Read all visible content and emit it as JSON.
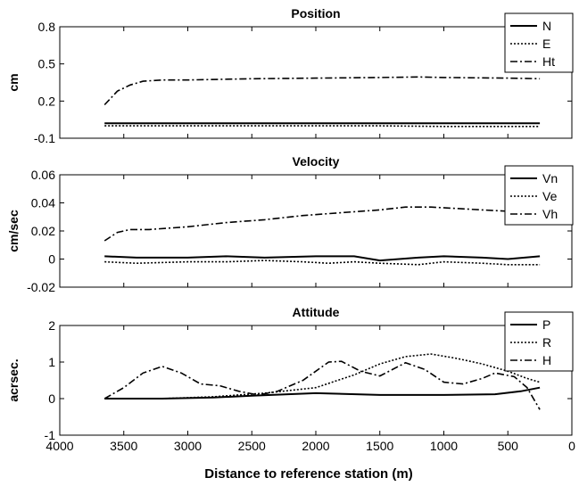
{
  "chart_data": [
    {
      "type": "line",
      "title": "Position",
      "ylabel": "cm",
      "xlim": [
        4000,
        0
      ],
      "ylim": [
        -0.1,
        0.8
      ],
      "yticks": [
        "0.8",
        "0.5",
        "0.2",
        "-0.1"
      ],
      "grid": false,
      "legend": "top-right",
      "series": [
        {
          "name": "N",
          "style": "solid",
          "x": [
            3650,
            3000,
            2000,
            1000,
            250
          ],
          "y": [
            0.02,
            0.02,
            0.02,
            0.02,
            0.02
          ]
        },
        {
          "name": "E",
          "style": "dotted",
          "x": [
            3650,
            3000,
            2000,
            1500,
            1000,
            250
          ],
          "y": [
            0.0,
            0.0,
            0.0,
            0.0,
            -0.005,
            -0.005
          ]
        },
        {
          "name": "Ht",
          "style": "dashdot",
          "x": [
            3650,
            3550,
            3450,
            3350,
            3200,
            3000,
            2500,
            2000,
            1500,
            1200,
            1000,
            500,
            250
          ],
          "y": [
            0.17,
            0.28,
            0.33,
            0.36,
            0.37,
            0.37,
            0.38,
            0.385,
            0.39,
            0.395,
            0.39,
            0.385,
            0.38
          ]
        }
      ]
    },
    {
      "type": "line",
      "title": "Velocity",
      "ylabel": "cm/sec",
      "xlim": [
        4000,
        0
      ],
      "ylim": [
        -0.02,
        0.06
      ],
      "yticks": [
        "0.06",
        "0.04",
        "0.02",
        "0",
        "-0.02"
      ],
      "grid": false,
      "legend": "top-right",
      "series": [
        {
          "name": "Vn",
          "style": "solid",
          "x": [
            3650,
            3400,
            3000,
            2700,
            2400,
            2000,
            1700,
            1500,
            1200,
            1000,
            700,
            500,
            250
          ],
          "y": [
            0.002,
            0.001,
            0.001,
            0.002,
            0.001,
            0.002,
            0.002,
            -0.001,
            0.001,
            0.002,
            0.001,
            0.0,
            0.002
          ]
        },
        {
          "name": "Ve",
          "style": "dotted",
          "x": [
            3650,
            3400,
            3000,
            2700,
            2400,
            2100,
            1900,
            1700,
            1500,
            1200,
            1000,
            700,
            500,
            250
          ],
          "y": [
            -0.002,
            -0.003,
            -0.002,
            -0.002,
            -0.001,
            -0.002,
            -0.003,
            -0.002,
            -0.003,
            -0.004,
            -0.002,
            -0.003,
            -0.004,
            -0.004
          ]
        },
        {
          "name": "Vh",
          "style": "dashdot",
          "x": [
            3650,
            3550,
            3450,
            3300,
            3000,
            2700,
            2400,
            2100,
            1800,
            1500,
            1300,
            1100,
            900,
            700,
            500,
            350
          ],
          "y": [
            0.013,
            0.019,
            0.021,
            0.021,
            0.023,
            0.026,
            0.028,
            0.031,
            0.033,
            0.035,
            0.037,
            0.037,
            0.036,
            0.035,
            0.034,
            0.031
          ]
        }
      ]
    },
    {
      "type": "line",
      "title": "Attitude",
      "ylabel": "acrsec.",
      "xlabel": "Distance to reference station (m)",
      "xlim": [
        4000,
        0
      ],
      "ylim": [
        -1,
        2
      ],
      "yticks": [
        "2",
        "1",
        "0",
        "-1"
      ],
      "xticks": [
        "4000",
        "3500",
        "3000",
        "2500",
        "2000",
        "1500",
        "1000",
        "500",
        "0"
      ],
      "xtick_values": [
        4000,
        3500,
        3000,
        2500,
        2000,
        1500,
        1000,
        500,
        0
      ],
      "grid": false,
      "legend": "top-right",
      "series": [
        {
          "name": "P",
          "style": "solid",
          "x": [
            3650,
            3200,
            2800,
            2500,
            2000,
            1500,
            1000,
            600,
            400,
            250
          ],
          "y": [
            0.0,
            0.0,
            0.03,
            0.08,
            0.15,
            0.1,
            0.1,
            0.12,
            0.2,
            0.3
          ]
        },
        {
          "name": "R",
          "style": "dotted",
          "x": [
            3650,
            3200,
            2800,
            2400,
            2000,
            1700,
            1500,
            1300,
            1100,
            900,
            700,
            500,
            350,
            250
          ],
          "y": [
            0.0,
            0.0,
            0.05,
            0.15,
            0.3,
            0.65,
            0.95,
            1.15,
            1.22,
            1.1,
            0.95,
            0.75,
            0.55,
            0.45
          ]
        },
        {
          "name": "H",
          "style": "dashdot",
          "x": [
            3650,
            3500,
            3350,
            3200,
            3050,
            2900,
            2750,
            2600,
            2450,
            2300,
            2100,
            1900,
            1800,
            1650,
            1500,
            1300,
            1150,
            1000,
            850,
            700,
            600,
            450,
            350,
            250
          ],
          "y": [
            0.0,
            0.3,
            0.7,
            0.88,
            0.7,
            0.4,
            0.35,
            0.2,
            0.1,
            0.2,
            0.5,
            1.0,
            1.02,
            0.75,
            0.62,
            0.98,
            0.8,
            0.45,
            0.4,
            0.55,
            0.7,
            0.6,
            0.3,
            -0.3
          ]
        }
      ]
    }
  ]
}
